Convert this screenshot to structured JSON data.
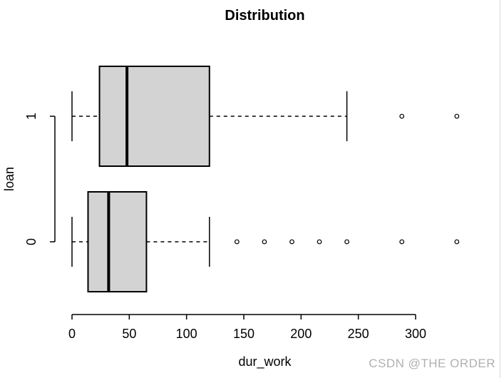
{
  "watermark": "CSDN @THE ORDER",
  "chart_data": {
    "type": "boxplot",
    "orientation": "horizontal",
    "title": "Distribution",
    "xlabel": "dur_work",
    "ylabel": "loan",
    "x_ticks": [
      0,
      50,
      100,
      150,
      200,
      250,
      300
    ],
    "xlim": [
      -14,
      350
    ],
    "grid": false,
    "legend": "none",
    "groups": [
      {
        "category": "0",
        "min": 0,
        "q1": 14,
        "median": 32,
        "q3": 65,
        "max": 120,
        "outliers": [
          144,
          168,
          192,
          216,
          240,
          288,
          336
        ]
      },
      {
        "category": "1",
        "min": 0,
        "q1": 24,
        "median": 48,
        "q3": 120,
        "max": 240,
        "outliers": [
          288,
          336
        ]
      }
    ],
    "colors": {
      "box_fill": "#d3d3d3",
      "line": "#000000",
      "background": "#ffffff",
      "watermark_text": "#b0b0b0",
      "right_edge_line": "#d8d8d8"
    }
  }
}
